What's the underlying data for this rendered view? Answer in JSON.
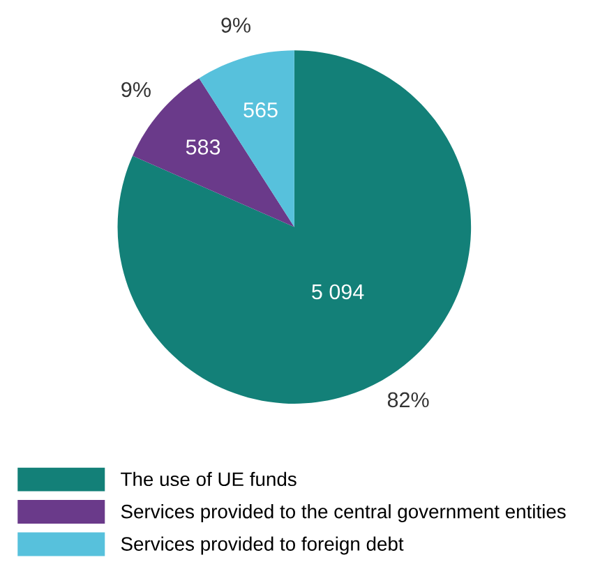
{
  "chart_data": {
    "type": "pie",
    "categories": [
      "The use of UE funds",
      "Services provided to the central government entities",
      "Services provided to foreign debt"
    ],
    "values": [
      5094,
      583,
      565
    ],
    "colors": [
      "#138078",
      "#6a3a8a",
      "#57c1dc"
    ],
    "value_labels": [
      "5 094",
      "583",
      "565"
    ],
    "annotations": [
      "82%",
      "9%",
      "9%"
    ],
    "legend": "bottom"
  }
}
